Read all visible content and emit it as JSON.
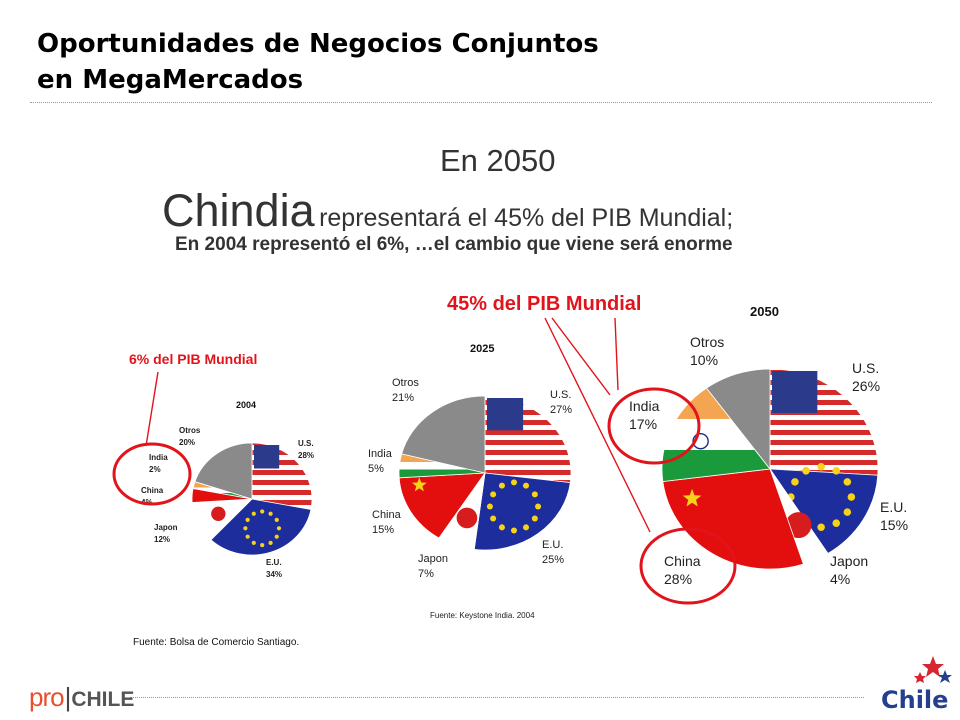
{
  "header": {
    "title_line1": "Oportunidades de Negocios Conjuntos",
    "title_line2": "en MegaMercados"
  },
  "headline": {
    "line1": "En 2050",
    "chindia": "Chindia",
    "line2_rest": "representará el 45% del PIB Mundial;",
    "line3": "En 2004 representó el 6%, …el cambio que viene será enorme"
  },
  "footer": {
    "source": "Fuente: Bolsa de Comercio Santiago.",
    "logo_pro": "pro",
    "logo_bar": "|",
    "logo_chile": "CHILE",
    "chile_logo_text": "Chile"
  },
  "chart_data": [
    {
      "type": "pie",
      "title": "2004",
      "callout": "6% del PIB Mundial",
      "slices": [
        {
          "name": "U.S.",
          "label": "28%",
          "value": 28,
          "pattern": "us-flag"
        },
        {
          "name": "E.U.",
          "label": "34%",
          "value": 34,
          "pattern": "eu-flag"
        },
        {
          "name": "Japon",
          "label": "12%",
          "value": 12,
          "pattern": "japan-flag"
        },
        {
          "name": "China",
          "label": "4%",
          "value": 4,
          "pattern": "china-flag"
        },
        {
          "name": "India",
          "label": "2%",
          "value": 2,
          "pattern": "india-flag"
        },
        {
          "name": "Otros",
          "label": "20%",
          "value": 20,
          "pattern": "gray"
        }
      ]
    },
    {
      "type": "pie",
      "title": "2025",
      "source": "Fuente: Keystone India. 2004",
      "slices": [
        {
          "name": "U.S.",
          "label": "27%",
          "value": 27,
          "pattern": "us-flag"
        },
        {
          "name": "E.U.",
          "label": "25%",
          "value": 25,
          "pattern": "eu-flag"
        },
        {
          "name": "Japon",
          "label": "7%",
          "value": 7,
          "pattern": "japan-flag"
        },
        {
          "name": "China",
          "label": "15%",
          "value": 15,
          "pattern": "china-flag"
        },
        {
          "name": "India",
          "label": "5%",
          "value": 5,
          "pattern": "india-flag"
        },
        {
          "name": "Otros",
          "label": "21%",
          "value": 21,
          "pattern": "gray"
        }
      ]
    },
    {
      "type": "pie",
      "title": "2050",
      "callout": "45% del PIB Mundial",
      "slices": [
        {
          "name": "U.S.",
          "label": "26%",
          "value": 26,
          "pattern": "us-flag"
        },
        {
          "name": "E.U.",
          "label": "15%",
          "value": 15,
          "pattern": "eu-flag"
        },
        {
          "name": "Japon",
          "label": "4%",
          "value": 4,
          "pattern": "japan-flag"
        },
        {
          "name": "China",
          "label": "28%",
          "value": 28,
          "pattern": "china-flag"
        },
        {
          "name": "India",
          "label": "17%",
          "value": 17,
          "pattern": "india-flag"
        },
        {
          "name": "Otros",
          "label": "10%",
          "value": 10,
          "pattern": "gray"
        }
      ]
    }
  ],
  "colors": {
    "callout_red": "#e2141b",
    "us_red": "#d42a2a",
    "us_blue": "#2c3a8c",
    "eu_blue": "#1d2e9c",
    "eu_star": "#f6d21a",
    "china_red": "#e30e0e",
    "india_saffron": "#f4a552",
    "india_green": "#1a9a3b",
    "otros_gray": "#8a8a8a"
  }
}
